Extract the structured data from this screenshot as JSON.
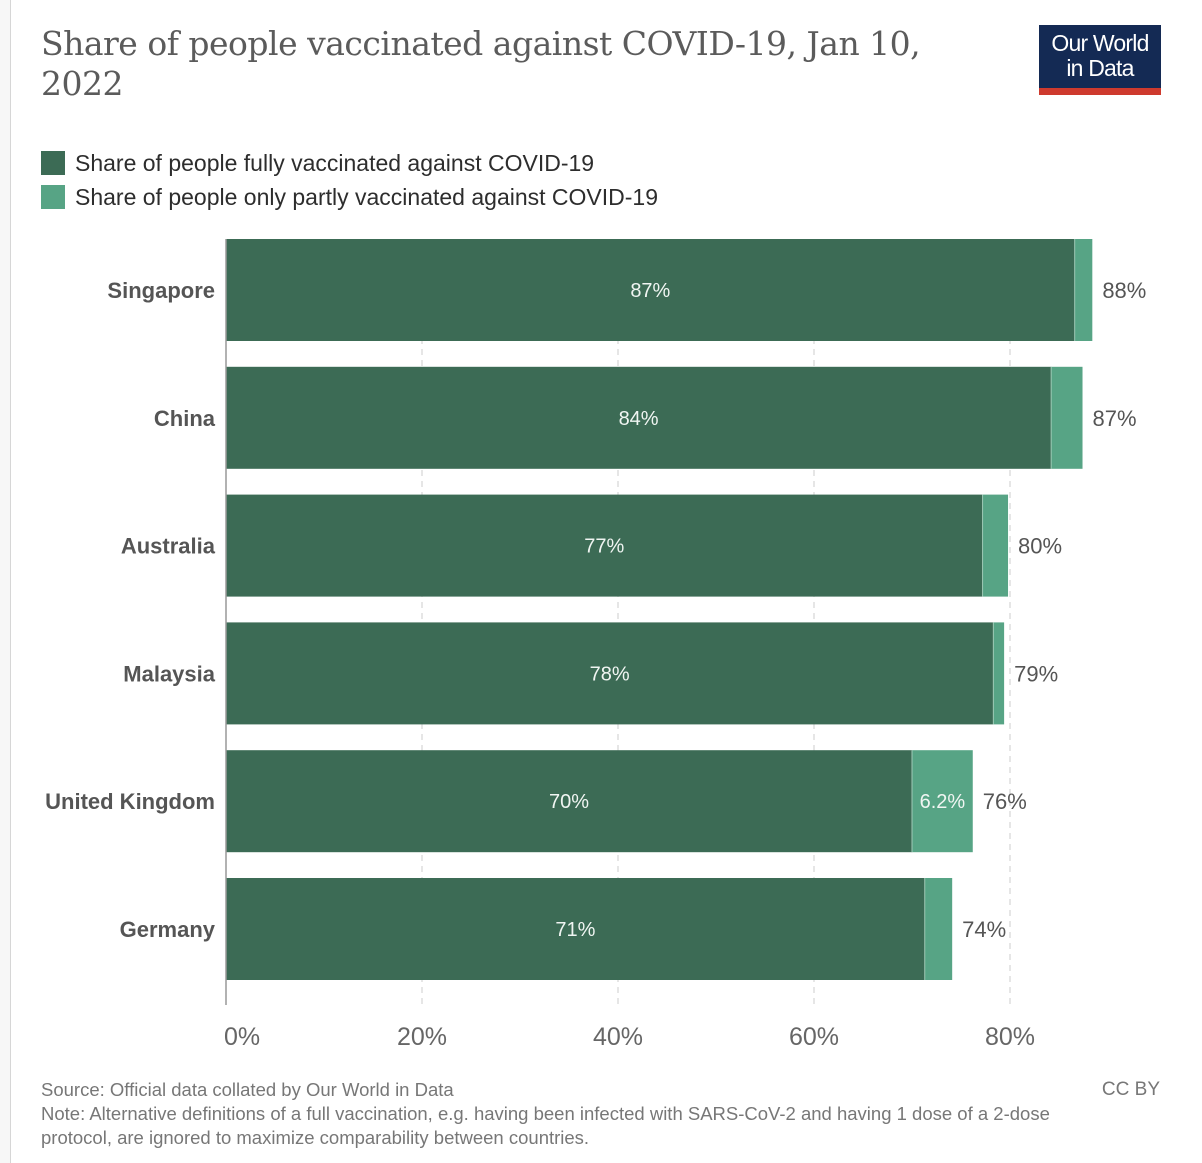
{
  "header": {
    "title": "Share of people vaccinated against COVID-19, Jan 10, 2022",
    "logo_line1": "Our World",
    "logo_line2": "in Data"
  },
  "colors": {
    "fully": "#3c6b55",
    "partly": "#57a485",
    "logo_bg": "#142a54",
    "logo_accent": "#ce3a2e"
  },
  "chart_data": {
    "type": "bar",
    "orientation": "horizontal",
    "stacked": true,
    "title": "Share of people vaccinated against COVID-19, Jan 10, 2022",
    "xlabel": "",
    "ylabel": "",
    "xlim": [
      0,
      80
    ],
    "x_ticks": [
      0,
      20,
      40,
      60,
      80
    ],
    "x_tick_labels": [
      "0%",
      "20%",
      "40%",
      "60%",
      "80%"
    ],
    "grid": "vertical dashed",
    "legend_position": "top-left",
    "categories": [
      "Singapore",
      "China",
      "Australia",
      "Malaysia",
      "United Kingdom",
      "Germany"
    ],
    "series": [
      {
        "name": "Share of people fully vaccinated against COVID-19",
        "values": [
          86.6,
          84.2,
          77.2,
          78.3,
          70.0,
          71.3
        ],
        "labels": [
          "87%",
          "84%",
          "77%",
          "78%",
          "70%",
          "71%"
        ]
      },
      {
        "name": "Share of people only partly vaccinated against COVID-19",
        "values": [
          1.8,
          3.2,
          2.6,
          1.1,
          6.2,
          2.8
        ],
        "labels": [
          "",
          "",
          "",
          "",
          "6.2%",
          ""
        ]
      }
    ],
    "totals": [
      88.4,
      87.4,
      79.8,
      79.4,
      76.2,
      74.1
    ],
    "total_labels": [
      "88%",
      "87%",
      "80%",
      "79%",
      "76%",
      "74%"
    ]
  },
  "legend": {
    "items": [
      {
        "label": "Share of people fully vaccinated against COVID-19"
      },
      {
        "label": "Share of people only partly vaccinated against COVID-19"
      }
    ]
  },
  "footer": {
    "source": "Source: Official data collated by Our World in Data",
    "note": "Note: Alternative definitions of a full vaccination, e.g. having been infected with SARS-CoV-2 and having 1 dose of a 2-dose protocol, are ignored to maximize comparability between countries.",
    "license": "CC BY"
  }
}
